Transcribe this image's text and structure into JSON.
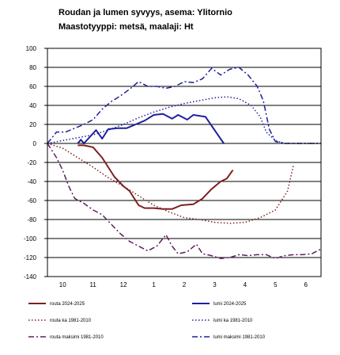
{
  "title": "Roudan ja lumen syvyys, asema: Ylitornio",
  "subtitle": "Maastotyyppi: metsä, maalaji: Ht",
  "chart_data": {
    "type": "line",
    "title": "Roudan ja lumen syvyys, asema: Ylitornio",
    "subtitle": "Maastotyyppi: metsä, maalaji: Ht",
    "xlabel": "",
    "ylabel": "",
    "x_range": [
      0,
      9
    ],
    "x_ticks": [
      "10",
      "11",
      "12",
      "1",
      "2",
      "3",
      "4",
      "5",
      "6"
    ],
    "ylim": [
      -140,
      100
    ],
    "y_ticks": [
      100,
      80,
      60,
      40,
      20,
      0,
      -20,
      -40,
      -60,
      -80,
      -100,
      -120,
      -140
    ],
    "grid": "horizontal",
    "legend_position": "bottom",
    "series": [
      {
        "name": "routa 2024-2025",
        "color": "#7f1f1f",
        "dash": "solid",
        "width": 2,
        "points": [
          [
            1.0,
            -2
          ],
          [
            1.2,
            -2
          ],
          [
            1.5,
            -4
          ],
          [
            1.8,
            -15
          ],
          [
            2.2,
            -35
          ],
          [
            2.5,
            -45
          ],
          [
            2.7,
            -50
          ],
          [
            3.0,
            -65
          ],
          [
            3.2,
            -68
          ],
          [
            3.5,
            -68
          ],
          [
            3.8,
            -69
          ],
          [
            4.1,
            -69
          ],
          [
            4.4,
            -65
          ],
          [
            4.8,
            -64
          ],
          [
            5.1,
            -58
          ],
          [
            5.4,
            -48
          ],
          [
            5.7,
            -40
          ],
          [
            5.9,
            -37
          ],
          [
            6.1,
            -28
          ]
        ]
      },
      {
        "name": "lumi 2024-2025",
        "color": "#1f1f9f",
        "dash": "solid",
        "width": 2,
        "points": [
          [
            1.0,
            0
          ],
          [
            1.1,
            4
          ],
          [
            1.2,
            0
          ],
          [
            1.6,
            14
          ],
          [
            1.8,
            5
          ],
          [
            2.0,
            15
          ],
          [
            2.3,
            16
          ],
          [
            2.6,
            16
          ],
          [
            2.9,
            20
          ],
          [
            3.2,
            24
          ],
          [
            3.5,
            30
          ],
          [
            3.8,
            31
          ],
          [
            4.1,
            26
          ],
          [
            4.3,
            30
          ],
          [
            4.6,
            25
          ],
          [
            4.8,
            30
          ],
          [
            5.2,
            28
          ],
          [
            5.5,
            14
          ],
          [
            5.8,
            0
          ]
        ]
      },
      {
        "name": "routa ka 1981-2010",
        "color": "#7f1f1f",
        "dash": "dot",
        "width": 1.5,
        "points": [
          [
            0.0,
            0
          ],
          [
            0.5,
            -5
          ],
          [
            1.0,
            -15
          ],
          [
            1.5,
            -25
          ],
          [
            2.0,
            -36
          ],
          [
            2.5,
            -45
          ],
          [
            3.0,
            -55
          ],
          [
            3.5,
            -65
          ],
          [
            4.0,
            -72
          ],
          [
            4.5,
            -78
          ],
          [
            5.0,
            -80
          ],
          [
            5.5,
            -83
          ],
          [
            6.0,
            -84
          ],
          [
            6.5,
            -83
          ],
          [
            7.0,
            -78
          ],
          [
            7.5,
            -70
          ],
          [
            7.9,
            -50
          ],
          [
            8.1,
            -22
          ]
        ]
      },
      {
        "name": "lumi ka 1981-2010",
        "color": "#1f1f9f",
        "dash": "dot",
        "width": 1.5,
        "points": [
          [
            0.0,
            0
          ],
          [
            0.5,
            3
          ],
          [
            1.0,
            6
          ],
          [
            1.5,
            9
          ],
          [
            2.0,
            14
          ],
          [
            2.5,
            20
          ],
          [
            3.0,
            27
          ],
          [
            3.5,
            33
          ],
          [
            4.0,
            38
          ],
          [
            4.5,
            42
          ],
          [
            5.0,
            45
          ],
          [
            5.5,
            48
          ],
          [
            5.9,
            49
          ],
          [
            6.3,
            47
          ],
          [
            6.7,
            40
          ],
          [
            7.0,
            28
          ],
          [
            7.2,
            12
          ],
          [
            7.5,
            3
          ],
          [
            7.8,
            0
          ],
          [
            8.5,
            0
          ],
          [
            9.0,
            0
          ]
        ]
      },
      {
        "name": "routa maksimi 1981-2010",
        "color": "#5f1f5f",
        "dash": "dashdot",
        "width": 1.5,
        "points": [
          [
            0.0,
            0
          ],
          [
            0.3,
            -15
          ],
          [
            0.5,
            -28
          ],
          [
            0.7,
            -45
          ],
          [
            0.9,
            -58
          ],
          [
            1.2,
            -63
          ],
          [
            1.5,
            -70
          ],
          [
            1.8,
            -75
          ],
          [
            2.1,
            -85
          ],
          [
            2.4,
            -95
          ],
          [
            2.7,
            -103
          ],
          [
            3.0,
            -108
          ],
          [
            3.3,
            -113
          ],
          [
            3.6,
            -108
          ],
          [
            3.9,
            -96
          ],
          [
            4.1,
            -108
          ],
          [
            4.3,
            -116
          ],
          [
            4.6,
            -114
          ],
          [
            4.9,
            -106
          ],
          [
            5.1,
            -116
          ],
          [
            5.4,
            -118
          ],
          [
            5.7,
            -121
          ],
          [
            6.0,
            -120
          ],
          [
            6.3,
            -117
          ],
          [
            6.6,
            -118
          ],
          [
            6.9,
            -117
          ],
          [
            7.2,
            -117
          ],
          [
            7.5,
            -121
          ],
          [
            7.8,
            -118
          ],
          [
            8.1,
            -117
          ],
          [
            8.4,
            -117
          ],
          [
            8.7,
            -116
          ],
          [
            9.0,
            -111
          ]
        ]
      },
      {
        "name": "lumi maksimi 1981-2010",
        "color": "#1f1f9f",
        "dash": "dashdot",
        "width": 1.5,
        "points": [
          [
            0.0,
            0
          ],
          [
            0.3,
            12
          ],
          [
            0.6,
            12
          ],
          [
            0.9,
            16
          ],
          [
            1.2,
            20
          ],
          [
            1.5,
            25
          ],
          [
            1.8,
            36
          ],
          [
            2.1,
            44
          ],
          [
            2.4,
            50
          ],
          [
            2.7,
            57
          ],
          [
            3.0,
            65
          ],
          [
            3.3,
            60
          ],
          [
            3.6,
            60
          ],
          [
            3.9,
            58
          ],
          [
            4.2,
            60
          ],
          [
            4.5,
            65
          ],
          [
            4.8,
            64
          ],
          [
            5.1,
            68
          ],
          [
            5.4,
            79
          ],
          [
            5.7,
            72
          ],
          [
            6.0,
            78
          ],
          [
            6.3,
            80
          ],
          [
            6.6,
            72
          ],
          [
            6.9,
            60
          ],
          [
            7.1,
            45
          ],
          [
            7.3,
            15
          ],
          [
            7.5,
            2
          ],
          [
            7.8,
            0
          ],
          [
            9.0,
            0
          ]
        ]
      }
    ]
  }
}
